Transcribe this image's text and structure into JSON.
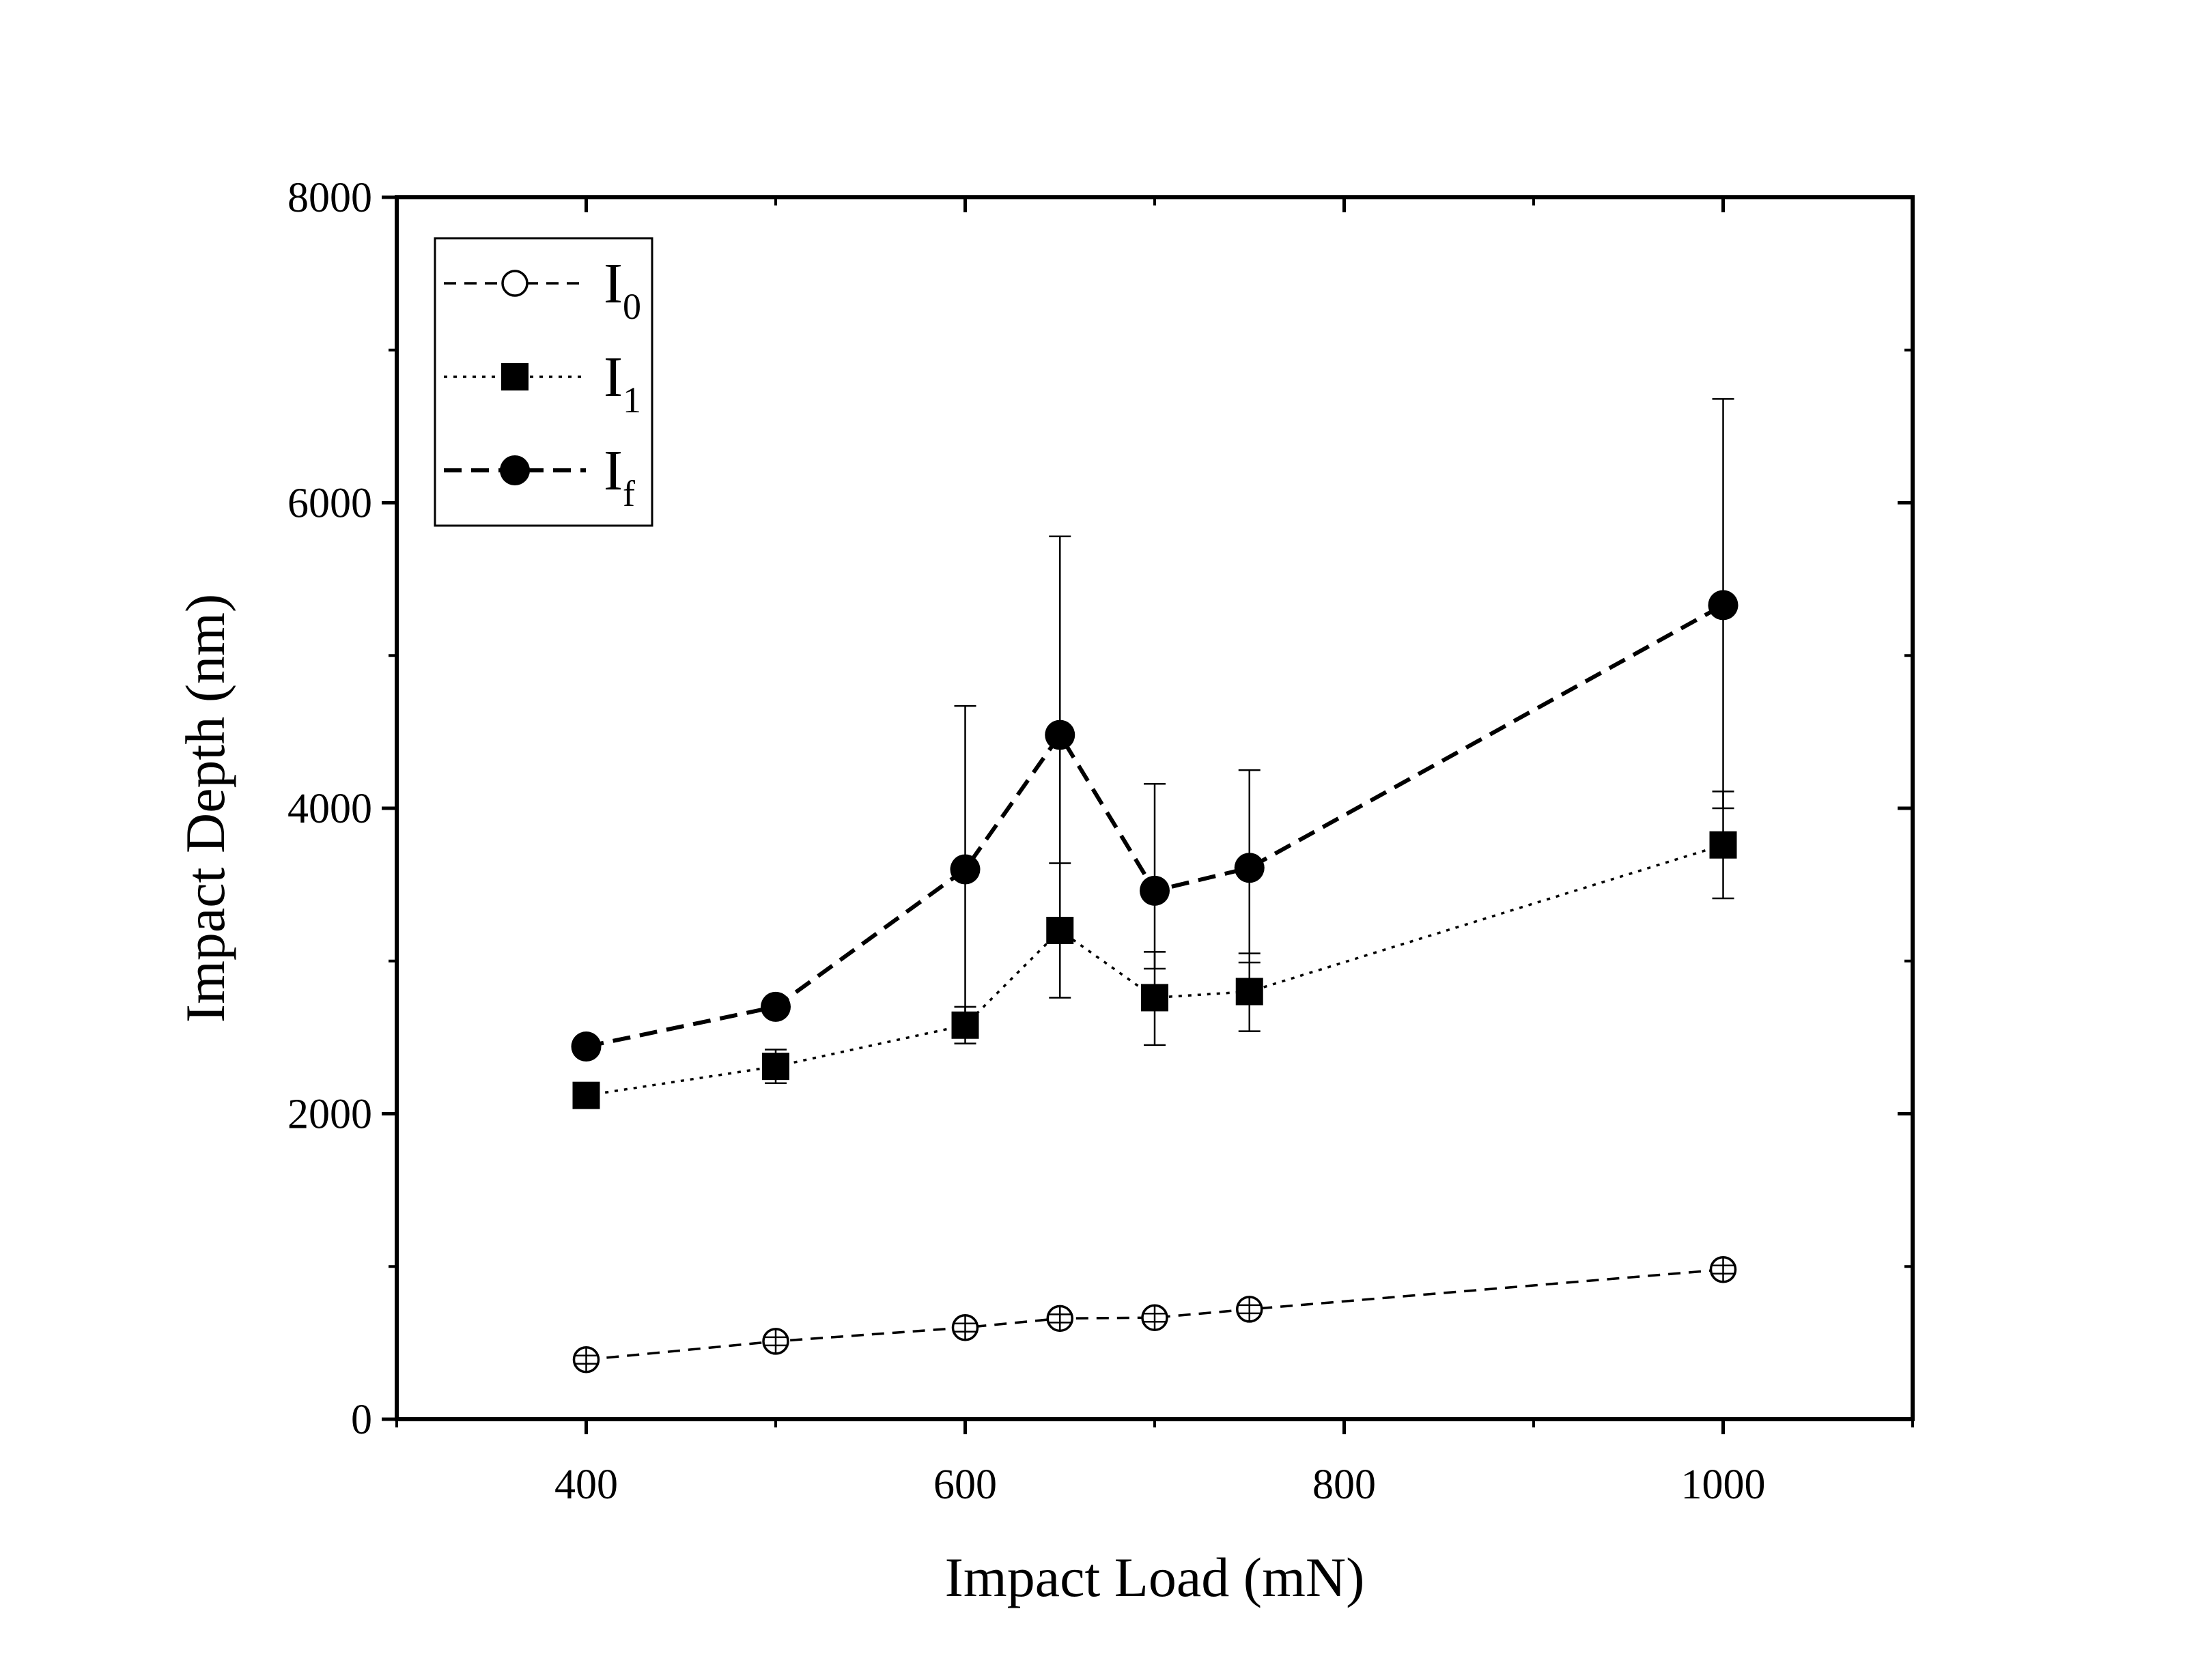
{
  "chart_data": {
    "type": "line",
    "xlabel": "Impact Load (mN)",
    "ylabel": "Impact Depth (nm)",
    "xlim": [
      300,
      1100
    ],
    "ylim": [
      0,
      8000
    ],
    "x_ticks": [
      400,
      600,
      800,
      1000
    ],
    "x_ticks_minor": [
      300,
      500,
      700,
      900,
      1100
    ],
    "y_ticks": [
      0,
      2000,
      4000,
      6000,
      8000
    ],
    "y_ticks_minor": [
      1000,
      3000,
      5000,
      7000
    ],
    "x_tick_labels": [
      "400",
      "600",
      "800",
      "1000"
    ],
    "y_tick_labels": [
      "0",
      "2000",
      "4000",
      "6000",
      "8000"
    ],
    "grid": false,
    "legend_position": "top-left",
    "x": [
      400,
      500,
      600,
      650,
      700,
      750,
      1000
    ],
    "series": [
      {
        "name": "I0",
        "legend_main": "I",
        "legend_sub": "0",
        "marker": "open-circle",
        "line_style": "dashed",
        "color": "#000000",
        "values": [
          390,
          510,
          600,
          660,
          665,
          720,
          980
        ],
        "error_low": [
          360,
          480,
          570,
          630,
          635,
          690,
          950
        ],
        "error_high": [
          420,
          540,
          630,
          690,
          695,
          750,
          1010
        ]
      },
      {
        "name": "I1",
        "legend_main": "I",
        "legend_sub": "1",
        "marker": "filled-square",
        "line_style": "dotted",
        "color": "#000000",
        "values": [
          2120,
          2310,
          2580,
          3200,
          2760,
          2800,
          3760
        ],
        "error_low": [
          2080,
          2200,
          2460,
          2760,
          2450,
          2540,
          3410
        ],
        "error_high": [
          2170,
          2420,
          2700,
          3640,
          3060,
          3050,
          4110
        ]
      },
      {
        "name": "If",
        "legend_main": "I",
        "legend_sub": "f",
        "marker": "filled-circle",
        "line_style": "dashed",
        "color": "#000000",
        "values": [
          2440,
          2700,
          3600,
          4480,
          3460,
          3610,
          5330
        ],
        "error_low": [
          2440,
          2700,
          2500,
          3200,
          2950,
          2990,
          4000
        ],
        "error_high": [
          2440,
          2700,
          4670,
          5780,
          4160,
          4250,
          6680
        ]
      }
    ]
  }
}
